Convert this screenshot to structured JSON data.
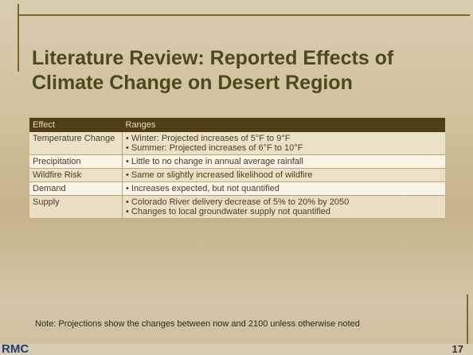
{
  "title": "Literature Review: Reported Effects of Climate Change on Desert Region",
  "table": {
    "header": [
      "Effect",
      "Ranges"
    ],
    "rows": [
      {
        "effect": "Temperature Change",
        "ranges": [
          "Winter: Projected increases of 5°F to 9°F",
          "Summer: Projected increases of 6°F to 10°F"
        ]
      },
      {
        "effect": "Precipitation",
        "ranges": [
          "Little to no change in annual average rainfall"
        ]
      },
      {
        "effect": "Wildfire Risk",
        "ranges": [
          "Same or slightly increased likelihood of wildfire"
        ]
      },
      {
        "effect": "Demand",
        "ranges": [
          "Increases expected, but not quantified"
        ]
      },
      {
        "effect": "Supply",
        "ranges": [
          "Colorado River delivery decrease of 5% to 20% by 2050",
          "Changes to local groundwater supply not quantified"
        ]
      }
    ]
  },
  "note": "Note: Projections show the changes between now and 2100 unless otherwise noted",
  "footer": {
    "logo": "RMC",
    "page": "17"
  }
}
